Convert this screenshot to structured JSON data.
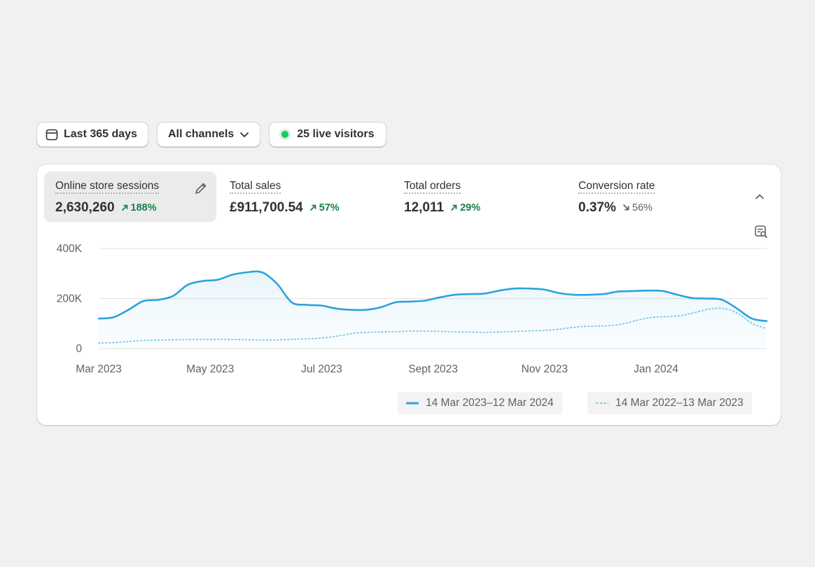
{
  "filters": {
    "date_range": "Last 365 days",
    "channels": "All channels",
    "live_visitors": "25 live visitors"
  },
  "metrics": [
    {
      "label": "Online store sessions",
      "value": "2,630,260",
      "change": "188%",
      "direction": "up",
      "active": true
    },
    {
      "label": "Total sales",
      "value": "£911,700.54",
      "change": "57%",
      "direction": "up",
      "active": false
    },
    {
      "label": "Total orders",
      "value": "12,011",
      "change": "29%",
      "direction": "up",
      "active": false
    },
    {
      "label": "Conversion rate",
      "value": "0.37%",
      "change": "56%",
      "direction": "down",
      "active": false
    }
  ],
  "colors": {
    "primary_series": "#2aa3dc",
    "comparison_series": "#78c6ec",
    "positive": "#1a7f4b",
    "live": "#22c55e"
  },
  "icons": [
    "calendar-icon",
    "chevron-down-icon",
    "pencil-icon",
    "chevron-up-icon",
    "explore-report-icon",
    "arrow-up-right-icon",
    "arrow-down-right-icon"
  ],
  "chart_data": {
    "type": "line",
    "y_ticks": [
      "400K",
      "200K",
      "0"
    ],
    "x_ticks": [
      "Mar 2023",
      "May 2023",
      "Jul 2023",
      "Sept 2023",
      "Nov 2023",
      "Jan 2024"
    ],
    "ylim": [
      0,
      400000
    ],
    "grid": true,
    "legend_position": "bottom-right",
    "series": [
      {
        "name": "14 Mar 2023–12 Mar 2024",
        "style": "solid",
        "values": [
          120000,
          125000,
          155000,
          190000,
          195000,
          210000,
          255000,
          270000,
          275000,
          295000,
          305000,
          305000,
          260000,
          185000,
          175000,
          172000,
          160000,
          155000,
          155000,
          165000,
          185000,
          188000,
          192000,
          205000,
          215000,
          218000,
          220000,
          232000,
          240000,
          240000,
          236000,
          222000,
          215000,
          215000,
          218000,
          228000,
          230000,
          232000,
          230000,
          215000,
          202000,
          200000,
          195000,
          160000,
          120000,
          110000
        ]
      },
      {
        "name": "14 Mar 2022–13 Mar 2023",
        "style": "dotted",
        "values": [
          22000,
          24000,
          28000,
          32000,
          34000,
          35000,
          36000,
          37000,
          37000,
          37000,
          36000,
          35000,
          34000,
          36000,
          38000,
          40000,
          44000,
          52000,
          62000,
          65000,
          67000,
          68000,
          70000,
          70000,
          69000,
          67000,
          66000,
          65000,
          66000,
          68000,
          70000,
          72000,
          75000,
          82000,
          88000,
          90000,
          92000,
          100000,
          115000,
          125000,
          128000,
          132000,
          145000,
          158000,
          160000,
          140000,
          100000,
          80000
        ]
      }
    ]
  }
}
